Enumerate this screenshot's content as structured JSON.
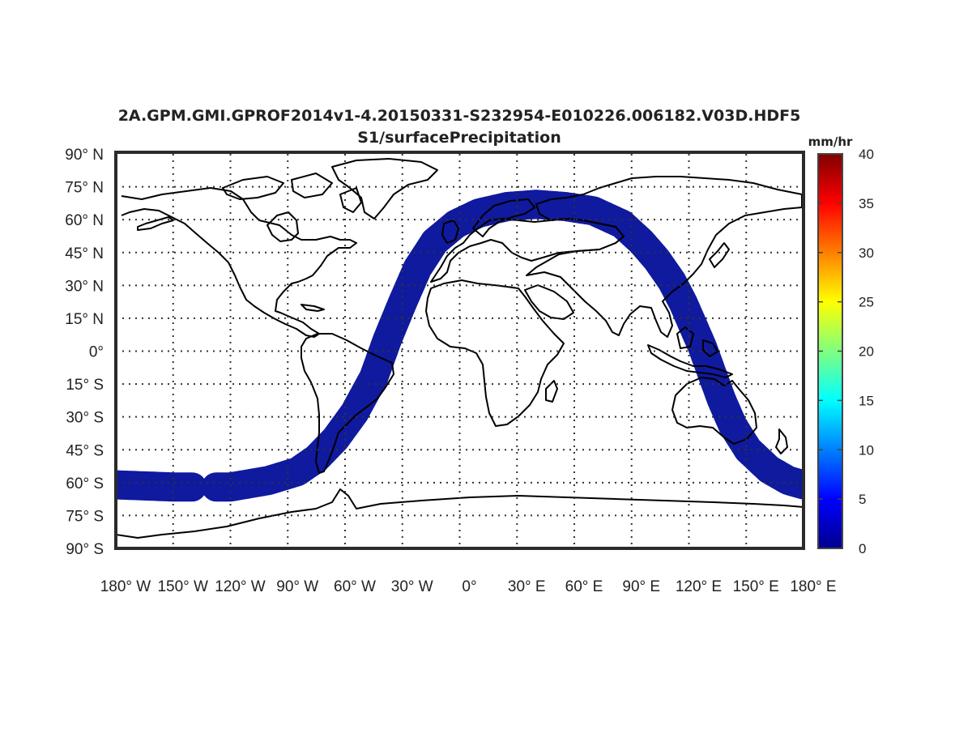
{
  "chart_data": {
    "type": "map",
    "title": "2A.GPM.GMI.GPROF2014v1-4.20150331-S232954-E010226.006182.V03D.HDF5",
    "subtitle": "S1/surfacePrecipitation",
    "projection": "equirectangular",
    "xlim": [
      -180,
      180
    ],
    "ylim": [
      -90,
      90
    ],
    "grid": true,
    "lat_ticks": [
      {
        "value": 90,
        "label": "90° N"
      },
      {
        "value": 75,
        "label": "75° N"
      },
      {
        "value": 60,
        "label": "60° N"
      },
      {
        "value": 45,
        "label": "45° N"
      },
      {
        "value": 30,
        "label": "30° N"
      },
      {
        "value": 15,
        "label": "15° N"
      },
      {
        "value": 0,
        "label": "0°"
      },
      {
        "value": -15,
        "label": "15° S"
      },
      {
        "value": -30,
        "label": "30° S"
      },
      {
        "value": -45,
        "label": "45° S"
      },
      {
        "value": -60,
        "label": "60° S"
      },
      {
        "value": -75,
        "label": "75° S"
      },
      {
        "value": -90,
        "label": "90° S"
      }
    ],
    "lon_ticks": [
      {
        "value": -180,
        "label": "180° W"
      },
      {
        "value": -150,
        "label": "150° W"
      },
      {
        "value": -120,
        "label": "120° W"
      },
      {
        "value": -90,
        "label": "90° W"
      },
      {
        "value": -60,
        "label": "60° W"
      },
      {
        "value": -30,
        "label": "30° W"
      },
      {
        "value": 0,
        "label": "0°"
      },
      {
        "value": 30,
        "label": "30° E"
      },
      {
        "value": 60,
        "label": "60° E"
      },
      {
        "value": 90,
        "label": "90° E"
      },
      {
        "value": 120,
        "label": "120° E"
      },
      {
        "value": 150,
        "label": "150° E"
      },
      {
        "value": 180,
        "label": "180° E"
      }
    ],
    "colorbar": {
      "unit": "mm/hr",
      "range": [
        0,
        40
      ],
      "ticks": [
        0,
        5,
        10,
        15,
        20,
        25,
        30,
        35,
        40
      ],
      "colormap": "jet"
    },
    "swath": {
      "color": "#0f1a9e",
      "value_mm_hr": 0,
      "centerline": [
        [
          -180,
          -61
        ],
        [
          -150,
          -62
        ],
        [
          -120,
          -62
        ],
        [
          -100,
          -59
        ],
        [
          -85,
          -55
        ],
        [
          -75,
          -49
        ],
        [
          -65,
          -40
        ],
        [
          -55,
          -28
        ],
        [
          -45,
          -12
        ],
        [
          -38,
          5
        ],
        [
          -30,
          22
        ],
        [
          -22,
          38
        ],
        [
          -13,
          50
        ],
        [
          -2,
          58
        ],
        [
          10,
          63
        ],
        [
          25,
          66
        ],
        [
          40,
          67
        ],
        [
          55,
          66
        ],
        [
          70,
          64
        ],
        [
          85,
          58
        ],
        [
          95,
          50
        ],
        [
          103,
          42
        ],
        [
          111,
          32
        ],
        [
          117,
          22
        ],
        [
          122,
          12
        ],
        [
          127,
          2
        ],
        [
          132,
          -10
        ],
        [
          137,
          -22
        ],
        [
          143,
          -34
        ],
        [
          151,
          -45
        ],
        [
          162,
          -54
        ],
        [
          172,
          -59
        ],
        [
          180,
          -61
        ]
      ],
      "gaps": [
        [
          -138,
          -128
        ]
      ]
    }
  }
}
